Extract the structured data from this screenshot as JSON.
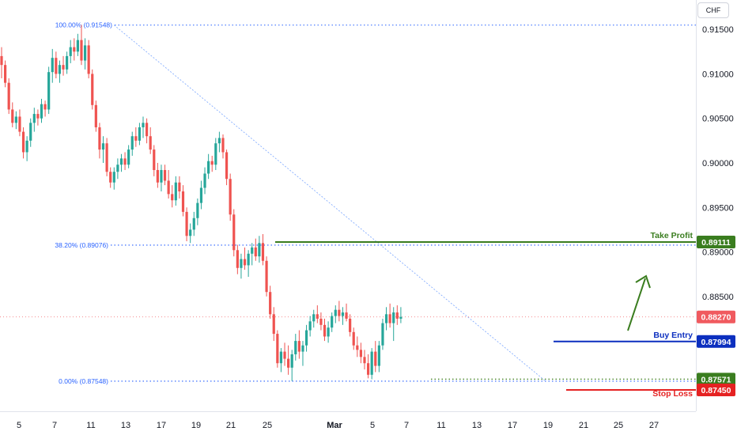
{
  "currency_label": "CHF",
  "colors": {
    "up": "#26a69a",
    "down": "#ef5350",
    "take_profit": "#3a7d1f",
    "buy_entry": "#0c2fbf",
    "stop_loss": "#e52222",
    "fib": "#2962ff",
    "current": "#f05a5f"
  },
  "chart_data": {
    "type": "candlestick",
    "ylim": [
      0.8721,
      0.9183
    ],
    "y_ticks": [
      "0.91500",
      "0.91000",
      "0.90500",
      "0.90000",
      "0.89500",
      "0.89000",
      "0.88500"
    ],
    "x_ticks": [
      "5",
      "7",
      "11",
      "13",
      "17",
      "19",
      "21",
      "25",
      "Mar",
      "5",
      "7",
      "11",
      "13",
      "17",
      "19",
      "21",
      "25",
      "27"
    ],
    "fib_levels": [
      {
        "label": "100.00% (0.91548)",
        "value": 0.91548
      },
      {
        "label": "38.20% (0.89076)",
        "value": 0.89076
      },
      {
        "label": "0.00% (0.87548)",
        "value": 0.87548
      }
    ],
    "levels": [
      {
        "key": "take_profit",
        "name": "Take Profit",
        "value": 0.89111,
        "tag": "0.89111"
      },
      {
        "key": "buy_entry",
        "name": "Buy Entry",
        "value": 0.87994,
        "tag": "0.87994"
      },
      {
        "key": "stop_loss",
        "name": "Stop Loss",
        "value": 0.8745,
        "tag": "0.87450"
      }
    ],
    "low_marker": {
      "tag": "0.87571",
      "value": 0.87571
    },
    "current_price": {
      "tag": "0.88270",
      "value": 0.8827
    },
    "ohlc": [
      [
        0.912,
        0.913,
        0.9095,
        0.911
      ],
      [
        0.911,
        0.9115,
        0.9085,
        0.909
      ],
      [
        0.909,
        0.9095,
        0.9055,
        0.906
      ],
      [
        0.906,
        0.9068,
        0.904,
        0.9045
      ],
      [
        0.9045,
        0.9058,
        0.9038,
        0.9052
      ],
      [
        0.9052,
        0.906,
        0.903,
        0.9035
      ],
      [
        0.9035,
        0.904,
        0.9005,
        0.9012
      ],
      [
        0.9012,
        0.903,
        0.9002,
        0.9025
      ],
      [
        0.9025,
        0.905,
        0.9018,
        0.9045
      ],
      [
        0.9045,
        0.9062,
        0.9035,
        0.9055
      ],
      [
        0.9055,
        0.906,
        0.9042,
        0.905
      ],
      [
        0.905,
        0.9072,
        0.9045,
        0.9066
      ],
      [
        0.9066,
        0.907,
        0.9052,
        0.906
      ],
      [
        0.906,
        0.9108,
        0.9055,
        0.9102
      ],
      [
        0.9102,
        0.9128,
        0.909,
        0.9118
      ],
      [
        0.9118,
        0.9125,
        0.9095,
        0.91
      ],
      [
        0.91,
        0.9115,
        0.909,
        0.911
      ],
      [
        0.911,
        0.912,
        0.9098,
        0.9105
      ],
      [
        0.9105,
        0.9125,
        0.91,
        0.912
      ],
      [
        0.912,
        0.9138,
        0.9112,
        0.913
      ],
      [
        0.913,
        0.914,
        0.9115,
        0.9125
      ],
      [
        0.9125,
        0.9145,
        0.912,
        0.9138
      ],
      [
        0.9138,
        0.9155,
        0.911,
        0.9115
      ],
      [
        0.9115,
        0.914,
        0.9105,
        0.9132
      ],
      [
        0.9132,
        0.9138,
        0.9095,
        0.91
      ],
      [
        0.91,
        0.9105,
        0.906,
        0.9065
      ],
      [
        0.9065,
        0.907,
        0.9035,
        0.904
      ],
      [
        0.904,
        0.9045,
        0.9005,
        0.9015
      ],
      [
        0.9015,
        0.903,
        0.9,
        0.9022
      ],
      [
        0.9022,
        0.9028,
        0.8985,
        0.899
      ],
      [
        0.899,
        0.8995,
        0.8972,
        0.8978
      ],
      [
        0.8978,
        0.8995,
        0.897,
        0.899
      ],
      [
        0.899,
        0.9005,
        0.8982,
        0.8998
      ],
      [
        0.8998,
        0.901,
        0.899,
        0.9005
      ],
      [
        0.9005,
        0.9012,
        0.8992,
        0.8998
      ],
      [
        0.8998,
        0.902,
        0.8994,
        0.9015
      ],
      [
        0.9015,
        0.9035,
        0.9008,
        0.903
      ],
      [
        0.903,
        0.904,
        0.9018,
        0.9025
      ],
      [
        0.9025,
        0.9045,
        0.902,
        0.904
      ],
      [
        0.904,
        0.9052,
        0.9028,
        0.9045
      ],
      [
        0.9045,
        0.905,
        0.9022,
        0.903
      ],
      [
        0.903,
        0.904,
        0.901,
        0.9015
      ],
      [
        0.9015,
        0.902,
        0.8985,
        0.8992
      ],
      [
        0.8992,
        0.9,
        0.8972,
        0.8978
      ],
      [
        0.8978,
        0.8998,
        0.8968,
        0.8992
      ],
      [
        0.8992,
        0.8998,
        0.8975,
        0.898
      ],
      [
        0.898,
        0.8992,
        0.896,
        0.8965
      ],
      [
        0.8965,
        0.8975,
        0.895,
        0.8958
      ],
      [
        0.8958,
        0.8985,
        0.8952,
        0.8978
      ],
      [
        0.8978,
        0.8985,
        0.896,
        0.8968
      ],
      [
        0.8968,
        0.8975,
        0.894,
        0.8945
      ],
      [
        0.8945,
        0.895,
        0.8912,
        0.8918
      ],
      [
        0.8918,
        0.8932,
        0.891,
        0.8925
      ],
      [
        0.8925,
        0.8945,
        0.8918,
        0.8938
      ],
      [
        0.8938,
        0.896,
        0.893,
        0.8955
      ],
      [
        0.8955,
        0.898,
        0.8948,
        0.8972
      ],
      [
        0.8972,
        0.8995,
        0.8965,
        0.8988
      ],
      [
        0.8988,
        0.901,
        0.8982,
        0.9002
      ],
      [
        0.9002,
        0.9008,
        0.899,
        0.8998
      ],
      [
        0.8998,
        0.9028,
        0.8992,
        0.9022
      ],
      [
        0.9022,
        0.9035,
        0.9012,
        0.9028
      ],
      [
        0.9028,
        0.9032,
        0.9005,
        0.9012
      ],
      [
        0.9012,
        0.9015,
        0.8975,
        0.8982
      ],
      [
        0.8982,
        0.8988,
        0.8935,
        0.8942
      ],
      [
        0.8942,
        0.8948,
        0.8895,
        0.8902
      ],
      [
        0.8902,
        0.8908,
        0.8875,
        0.8882
      ],
      [
        0.8882,
        0.8898,
        0.887,
        0.8892
      ],
      [
        0.8892,
        0.8905,
        0.888,
        0.8885
      ],
      [
        0.8885,
        0.8902,
        0.8872,
        0.8898
      ],
      [
        0.8898,
        0.891,
        0.8885,
        0.8905
      ],
      [
        0.8905,
        0.8915,
        0.889,
        0.8895
      ],
      [
        0.8895,
        0.8918,
        0.8888,
        0.891
      ],
      [
        0.891,
        0.892,
        0.8885,
        0.889
      ],
      [
        0.889,
        0.8895,
        0.885,
        0.8855
      ],
      [
        0.8855,
        0.8862,
        0.8825,
        0.883
      ],
      [
        0.883,
        0.8838,
        0.88,
        0.8808
      ],
      [
        0.8808,
        0.8812,
        0.877,
        0.8775
      ],
      [
        0.8775,
        0.8792,
        0.8765,
        0.8788
      ],
      [
        0.8788,
        0.8798,
        0.8772,
        0.878
      ],
      [
        0.878,
        0.8795,
        0.8762,
        0.877
      ],
      [
        0.877,
        0.879,
        0.8755,
        0.8785
      ],
      [
        0.8785,
        0.8808,
        0.8778,
        0.88
      ],
      [
        0.88,
        0.8812,
        0.878,
        0.8788
      ],
      [
        0.8788,
        0.88,
        0.8772,
        0.8795
      ],
      [
        0.8795,
        0.8818,
        0.8788,
        0.8812
      ],
      [
        0.8812,
        0.8828,
        0.8805,
        0.8822
      ],
      [
        0.8822,
        0.8835,
        0.8815,
        0.883
      ],
      [
        0.883,
        0.884,
        0.882,
        0.8825
      ],
      [
        0.8825,
        0.8832,
        0.8812,
        0.8818
      ],
      [
        0.8818,
        0.8825,
        0.88,
        0.8805
      ],
      [
        0.8805,
        0.8822,
        0.8798,
        0.8815
      ],
      [
        0.8815,
        0.8832,
        0.881,
        0.8828
      ],
      [
        0.8828,
        0.884,
        0.882,
        0.8835
      ],
      [
        0.8835,
        0.8845,
        0.8822,
        0.8828
      ],
      [
        0.8828,
        0.8838,
        0.8818,
        0.8832
      ],
      [
        0.8832,
        0.8842,
        0.8822,
        0.8825
      ],
      [
        0.8825,
        0.883,
        0.8805,
        0.881
      ],
      [
        0.881,
        0.8815,
        0.879,
        0.8795
      ],
      [
        0.8795,
        0.8805,
        0.8782,
        0.879
      ],
      [
        0.879,
        0.8798,
        0.8775,
        0.8782
      ],
      [
        0.8782,
        0.879,
        0.8768,
        0.8775
      ],
      [
        0.8775,
        0.8785,
        0.8758,
        0.8762
      ],
      [
        0.8762,
        0.8792,
        0.8757,
        0.8788
      ],
      [
        0.8788,
        0.88,
        0.8765,
        0.8772
      ],
      [
        0.8772,
        0.88,
        0.8765,
        0.8795
      ],
      [
        0.8795,
        0.8825,
        0.879,
        0.882
      ],
      [
        0.882,
        0.8838,
        0.8812,
        0.883
      ],
      [
        0.883,
        0.8842,
        0.8815,
        0.882
      ],
      [
        0.882,
        0.8838,
        0.88,
        0.8832
      ],
      [
        0.8832,
        0.884,
        0.8818,
        0.8825
      ],
      [
        0.8825,
        0.8838,
        0.882,
        0.8827
      ]
    ]
  }
}
